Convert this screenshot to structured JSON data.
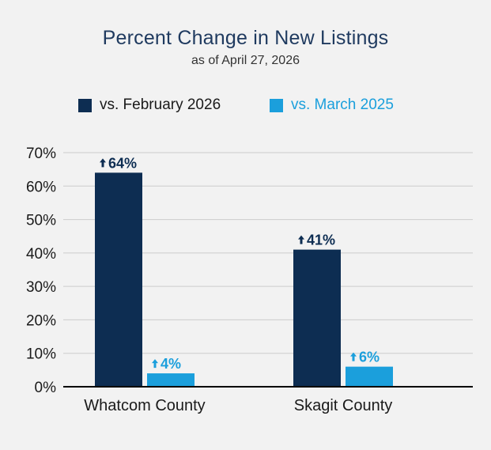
{
  "chart_data": {
    "type": "bar",
    "title": "Percent Change in New Listings",
    "subtitle": "as of April 27, 2026",
    "categories": [
      "Whatcom County",
      "Skagit County"
    ],
    "series": [
      {
        "name": "vs. February 2026",
        "color": "#0d2d52",
        "values": [
          64,
          41
        ],
        "labels": [
          "64%",
          "41%"
        ]
      },
      {
        "name": "vs. March 2025",
        "color": "#1b9fdc",
        "values": [
          4,
          6
        ],
        "labels": [
          "4%",
          "6%"
        ]
      }
    ],
    "ylim": [
      0,
      70
    ],
    "yticks": [
      0,
      10,
      20,
      30,
      40,
      50,
      60,
      70
    ],
    "ytick_labels": [
      "0%",
      "10%",
      "20%",
      "30%",
      "40%",
      "50%",
      "60%",
      "70%"
    ],
    "grid": true,
    "legend_position": "top",
    "label_marker": "up-arrow-icon",
    "colors": {
      "background": "#f2f2f2",
      "grid": "#cccccc",
      "axis": "#000000"
    }
  }
}
